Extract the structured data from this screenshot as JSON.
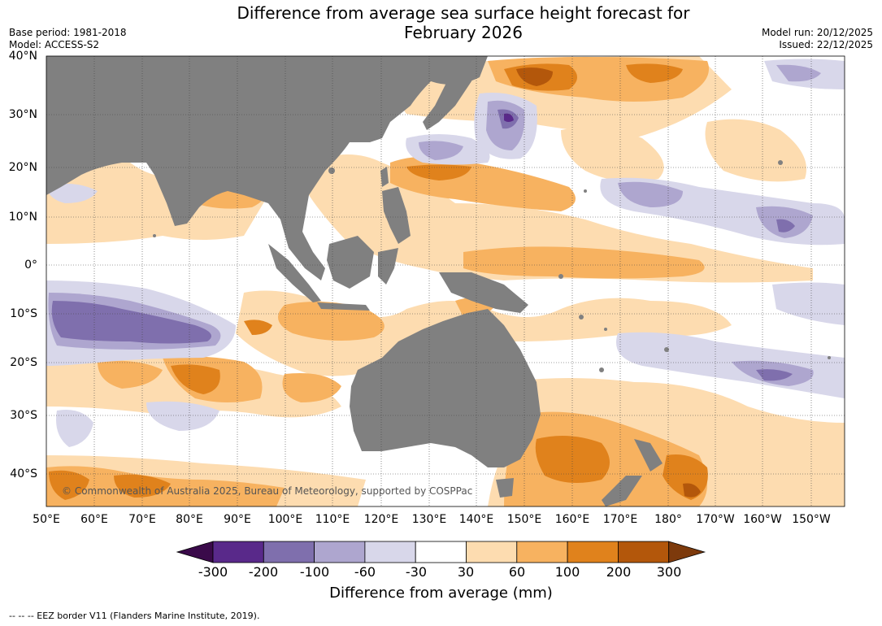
{
  "header": {
    "title_line1": "Difference from average sea surface height forecast for",
    "title_line2": "February 2026",
    "base_period": "Base period: 1981-2018",
    "model": "Model: ACCESS-S2",
    "model_run": "Model run: 20/12/2025",
    "issued": "Issued: 22/12/2025"
  },
  "map": {
    "lat_labels": [
      "40°N",
      "30°N",
      "20°N",
      "10°N",
      "0°",
      "10°S",
      "20°S",
      "30°S",
      "40°S"
    ],
    "lon_labels": [
      "50°E",
      "60°E",
      "70°E",
      "80°E",
      "90°E",
      "100°E",
      "110°E",
      "120°E",
      "130°E",
      "140°E",
      "150°E",
      "160°E",
      "170°E",
      "180°",
      "170°W",
      "160°W",
      "150°W"
    ],
    "copyright": "© Commonwealth of Australia 2025, Bureau of Meteorology, supported by COSPPac",
    "colors": {
      "land": "#808080",
      "ocean": "#ffffff",
      "grid": "#444444"
    }
  },
  "colorbar": {
    "title": "Difference from average (mm)",
    "tick_labels": [
      "-300",
      "-200",
      "-100",
      "-60",
      "-30",
      "30",
      "60",
      "100",
      "200",
      "300"
    ],
    "colors": [
      "#3a0a4a",
      "#59298a",
      "#7f6fad",
      "#aea6cf",
      "#d8d7ea",
      "#ffffff",
      "#fddcb0",
      "#f7b260",
      "#e0821c",
      "#b3570b",
      "#7d3a0c"
    ]
  },
  "footer": {
    "eez_note": "--  --  -- EEZ border V11 (Flanders Marine Institute, 2019)."
  }
}
